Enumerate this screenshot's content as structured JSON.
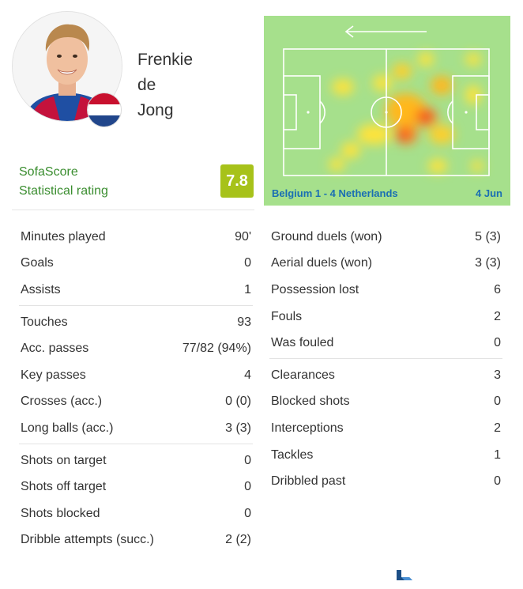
{
  "player": {
    "name_lines": [
      "Frenkie",
      "de",
      "Jong"
    ],
    "flag": "netherlands-flag-icon"
  },
  "rating": {
    "label_lines": [
      "SofaScore",
      "Statistical rating"
    ],
    "value": "7.8",
    "color": "#a7c21a"
  },
  "heatmap": {
    "attack_direction": "left",
    "match": "Belgium 1 - 4 Netherlands",
    "date": "4 Jun"
  },
  "stats_left": [
    [
      {
        "label": "Minutes played",
        "value": "90'"
      },
      {
        "label": "Goals",
        "value": "0"
      },
      {
        "label": "Assists",
        "value": "1"
      }
    ],
    [
      {
        "label": "Touches",
        "value": "93"
      },
      {
        "label": "Acc. passes",
        "value": "77/82 (94%)"
      },
      {
        "label": "Key passes",
        "value": "4"
      },
      {
        "label": "Crosses (acc.)",
        "value": "0 (0)"
      },
      {
        "label": "Long balls (acc.)",
        "value": "3 (3)"
      }
    ],
    [
      {
        "label": "Shots on target",
        "value": "0"
      },
      {
        "label": "Shots off target",
        "value": "0"
      },
      {
        "label": "Shots blocked",
        "value": "0"
      },
      {
        "label": "Dribble attempts (succ.)",
        "value": "2 (2)"
      }
    ]
  ],
  "stats_right": [
    [
      {
        "label": "Ground duels (won)",
        "value": "5 (3)"
      },
      {
        "label": "Aerial duels (won)",
        "value": "3 (3)"
      },
      {
        "label": "Possession lost",
        "value": "6"
      },
      {
        "label": "Fouls",
        "value": "2"
      },
      {
        "label": "Was fouled",
        "value": "0"
      }
    ],
    [
      {
        "label": "Clearances",
        "value": "3"
      },
      {
        "label": "Blocked shots",
        "value": "0"
      },
      {
        "label": "Interceptions",
        "value": "2"
      },
      {
        "label": "Tackles",
        "value": "1"
      },
      {
        "label": "Dribbled past",
        "value": "0"
      }
    ]
  ]
}
